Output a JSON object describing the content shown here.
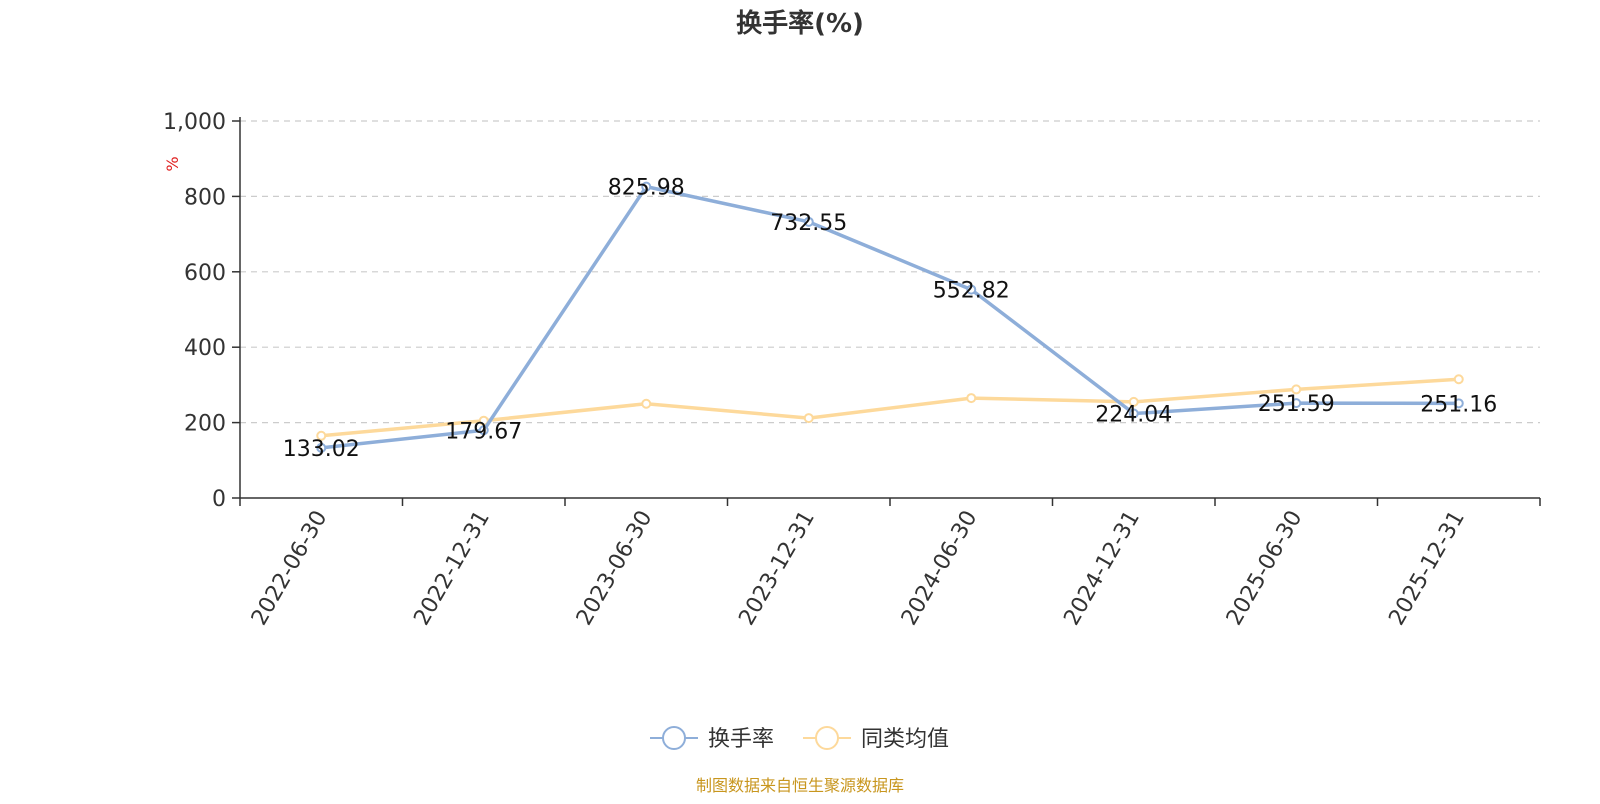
{
  "chart_data": {
    "type": "line",
    "title": "换手率(%)",
    "ylabel": "%",
    "categories": [
      "2022-06-30",
      "2022-12-31",
      "2023-06-30",
      "2023-12-31",
      "2024-06-30",
      "2024-12-31",
      "2025-06-30",
      "2025-12-31"
    ],
    "yticks": [
      "0",
      "200",
      "400",
      "600",
      "800",
      "1,000"
    ],
    "ylim": [
      0,
      1000
    ],
    "grid": true,
    "legend_position": "bottom",
    "series": [
      {
        "name": "换手率",
        "color": "#8eaed9",
        "values": [
          133.02,
          179.67,
          825.98,
          732.55,
          552.82,
          224.04,
          251.59,
          251.16
        ],
        "labels": [
          "133.02",
          "179.67",
          "825.98",
          "732.55",
          "552.82",
          "224.04",
          "251.59",
          "251.16"
        ]
      },
      {
        "name": "同类均值",
        "color": "#fdd99b",
        "values": [
          165,
          205,
          250,
          212,
          265,
          255,
          288,
          315
        ]
      }
    ],
    "source": "制图数据来自恒生聚源数据库"
  }
}
